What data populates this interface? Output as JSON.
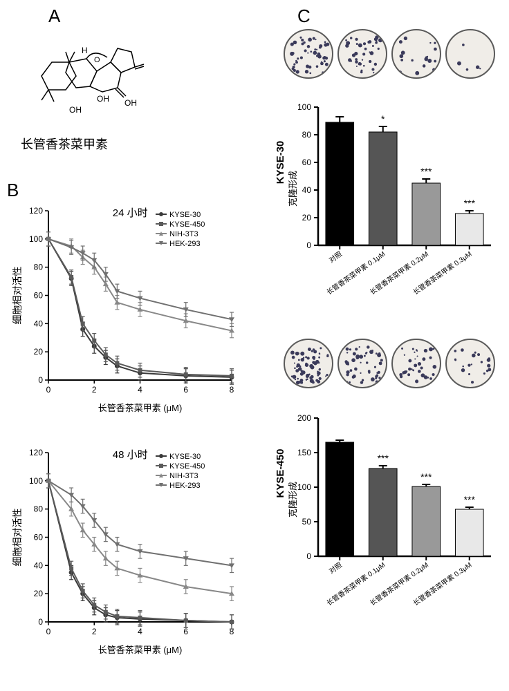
{
  "panelA": {
    "label": "A",
    "compoundName": "长管香茶菜甲素"
  },
  "panelB": {
    "label": "B",
    "yAxisLabel": "细胞相对活性",
    "xAxisLabel": "长管香茶菜甲素 (μM)",
    "chart24": {
      "title": "24 小时",
      "xlim": [
        0,
        8
      ],
      "ylim": [
        0,
        120
      ],
      "xticks": [
        0,
        2,
        4,
        6,
        8
      ],
      "yticks": [
        0,
        20,
        40,
        60,
        80,
        100,
        120
      ],
      "series": [
        {
          "name": "KYSE-30",
          "color": "#3a3a3a",
          "marker": "circle",
          "x": [
            0,
            1,
            1.5,
            2,
            2.5,
            3,
            4,
            6,
            8
          ],
          "y": [
            100,
            72,
            36,
            24,
            16,
            10,
            5,
            3,
            2
          ]
        },
        {
          "name": "KYSE-450",
          "color": "#5a5a5a",
          "marker": "square",
          "x": [
            0,
            1,
            1.5,
            2,
            2.5,
            3,
            4,
            6,
            8
          ],
          "y": [
            100,
            73,
            40,
            28,
            18,
            12,
            7,
            4,
            3
          ]
        },
        {
          "name": "NIH-3T3",
          "color": "#888888",
          "marker": "triangle",
          "x": [
            0,
            1,
            1.5,
            2,
            2.5,
            3,
            4,
            6,
            8
          ],
          "y": [
            100,
            95,
            87,
            80,
            68,
            55,
            50,
            42,
            35
          ]
        },
        {
          "name": "HEK-293",
          "color": "#707070",
          "marker": "itriangle",
          "x": [
            0,
            1,
            1.5,
            2,
            2.5,
            3,
            4,
            6,
            8
          ],
          "y": [
            100,
            94,
            90,
            85,
            75,
            63,
            58,
            50,
            43
          ]
        }
      ]
    },
    "chart48": {
      "title": "48 小时",
      "xlim": [
        0,
        8
      ],
      "ylim": [
        0,
        120
      ],
      "xticks": [
        0,
        2,
        4,
        6,
        8
      ],
      "yticks": [
        0,
        20,
        40,
        60,
        80,
        100,
        120
      ],
      "series": [
        {
          "name": "KYSE-30",
          "color": "#3a3a3a",
          "marker": "circle",
          "x": [
            0,
            1,
            1.5,
            2,
            2.5,
            3,
            4,
            6,
            8
          ],
          "y": [
            100,
            35,
            20,
            10,
            5,
            3,
            2,
            1,
            0
          ]
        },
        {
          "name": "KYSE-450",
          "color": "#5a5a5a",
          "marker": "square",
          "x": [
            0,
            1,
            1.5,
            2,
            2.5,
            3,
            4,
            6,
            8
          ],
          "y": [
            100,
            38,
            22,
            12,
            7,
            4,
            3,
            1,
            0
          ]
        },
        {
          "name": "NIH-3T3",
          "color": "#888888",
          "marker": "triangle",
          "x": [
            0,
            1,
            1.5,
            2,
            2.5,
            3,
            4,
            6,
            8
          ],
          "y": [
            100,
            80,
            65,
            55,
            45,
            38,
            33,
            25,
            20
          ]
        },
        {
          "name": "HEK-293",
          "color": "#707070",
          "marker": "itriangle",
          "x": [
            0,
            1,
            1.5,
            2,
            2.5,
            3,
            4,
            6,
            8
          ],
          "y": [
            100,
            90,
            82,
            72,
            62,
            55,
            50,
            45,
            40
          ]
        }
      ]
    }
  },
  "panelC": {
    "label": "C",
    "chartKYSE30": {
      "yLabel": "KYSE-30",
      "ySubLabel": "克隆形成",
      "ylim": [
        0,
        100
      ],
      "yticks": [
        0,
        20,
        40,
        60,
        80,
        100
      ],
      "bars": [
        {
          "label": "对照",
          "value": 89,
          "err": 4,
          "color": "#000000",
          "sig": ""
        },
        {
          "label": "长管香茶菜甲素 0.1μM",
          "value": 82,
          "err": 4,
          "color": "#555555",
          "sig": "*"
        },
        {
          "label": "长管香茶菜甲素 0.2μM",
          "value": 45,
          "err": 3,
          "color": "#999999",
          "sig": "***"
        },
        {
          "label": "长管香茶菜甲素 0.3μM",
          "value": 23,
          "err": 2,
          "color": "#e8e8e8",
          "sig": "***"
        }
      ]
    },
    "chartKYSE450": {
      "yLabel": "KYSE-450",
      "ySubLabel": "克隆形成",
      "ylim": [
        0,
        200
      ],
      "yticks": [
        0,
        50,
        100,
        150,
        200
      ],
      "bars": [
        {
          "label": "对照",
          "value": 165,
          "err": 3,
          "color": "#000000",
          "sig": ""
        },
        {
          "label": "长管香茶菜甲素 0.1μM",
          "value": 127,
          "err": 4,
          "color": "#555555",
          "sig": "***"
        },
        {
          "label": "长管香茶菜甲素 0.2μM",
          "value": 101,
          "err": 3,
          "color": "#999999",
          "sig": "***"
        },
        {
          "label": "长管香茶菜甲素 0.3μM",
          "value": 68,
          "err": 3,
          "color": "#e8e8e8",
          "sig": "***"
        }
      ]
    },
    "dishColonyDensity": {
      "row1": [
        50,
        40,
        18,
        5
      ],
      "row2": [
        70,
        50,
        35,
        20
      ]
    }
  },
  "colors": {
    "axis": "#000000",
    "background": "#ffffff"
  }
}
